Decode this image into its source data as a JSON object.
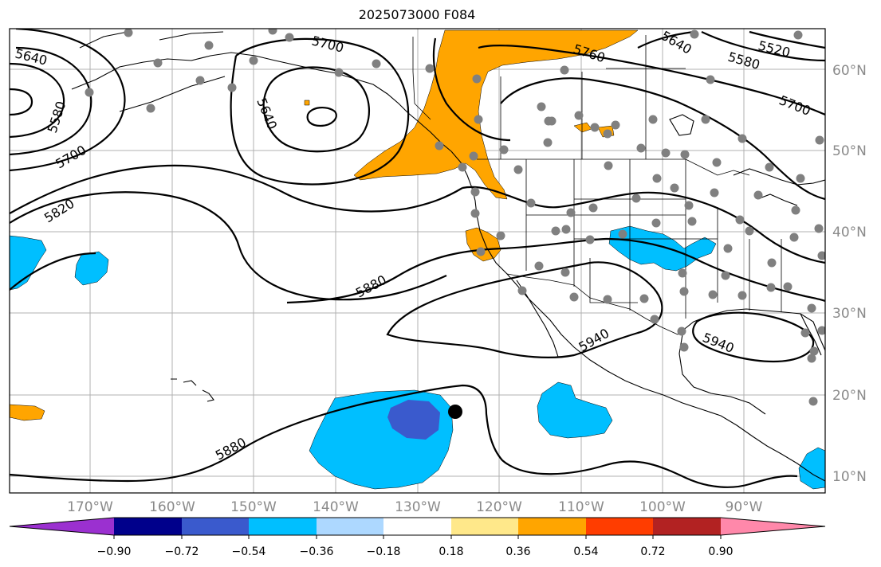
{
  "title": "2025073000 F084",
  "lat_labels": [
    "60°N",
    "50°N",
    "40°N",
    "30°N",
    "20°N",
    "10°N"
  ],
  "lon_labels": [
    "170°W",
    "160°W",
    "150°W",
    "140°W",
    "130°W",
    "120°W",
    "110°W",
    "100°W",
    "90°W"
  ],
  "contour_labels": [
    "5640",
    "5580",
    "5700",
    "5820",
    "5700",
    "5640",
    "5760",
    "5640",
    "5580",
    "5520",
    "5700",
    "5880",
    "5940",
    "5940",
    "5880"
  ],
  "colorbar": {
    "tick_labels": [
      "−0.90",
      "−0.72",
      "−0.54",
      "−0.36",
      "−0.18",
      "0.18",
      "0.36",
      "0.54",
      "0.72",
      "0.90"
    ],
    "colors": [
      "#9b30d0",
      "#00008b",
      "#3a5acd",
      "#00bfff",
      "#add8ff",
      "#ffffff",
      "#ffe88a",
      "#ffa500",
      "#ff3d00",
      "#b22222",
      "#ff88aa"
    ]
  },
  "colors": {
    "positive_anomaly": "#ffa500",
    "negative_anomaly": "#00bfff",
    "strong_negative": "#3a5acd",
    "station_dot": "#808080",
    "marker": "#000000"
  }
}
